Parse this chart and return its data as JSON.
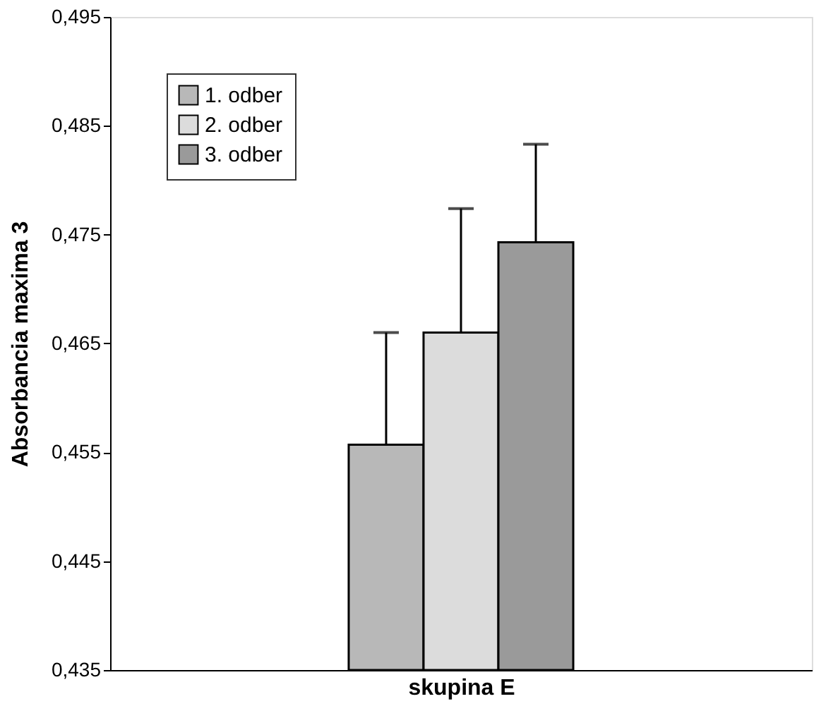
{
  "chart_data": {
    "type": "bar",
    "xlabel": "skupina E",
    "ylabel": "Absorbancia maxima 3",
    "categories": [
      null
    ],
    "series": [
      {
        "name": "1. odber",
        "color": "#b8b8b8",
        "values": [
          0.4557
        ],
        "errors": [
          [
            0.4557,
            0.466
          ]
        ]
      },
      {
        "name": "2. odber",
        "color": "#dcdcdc",
        "values": [
          0.466
        ],
        "errors": [
          [
            0.466,
            0.4774
          ]
        ]
      },
      {
        "name": "3. odber",
        "color": "#9a9a9a",
        "values": [
          0.4743
        ],
        "errors": [
          [
            0.4743,
            0.4833
          ]
        ]
      }
    ],
    "ylim": [
      0.435,
      0.495
    ],
    "yticks": [
      {
        "value": 0.435,
        "label": "0,435"
      },
      {
        "value": 0.445,
        "label": "0,445"
      },
      {
        "value": 0.455,
        "label": "0,455"
      },
      {
        "value": 0.465,
        "label": "0,465"
      },
      {
        "value": 0.475,
        "label": "0,475"
      },
      {
        "value": 0.485,
        "label": "0,485"
      },
      {
        "value": 0.495,
        "label": "0,495"
      }
    ],
    "legend": "top left",
    "grid": false,
    "tick_labels": "y"
  }
}
